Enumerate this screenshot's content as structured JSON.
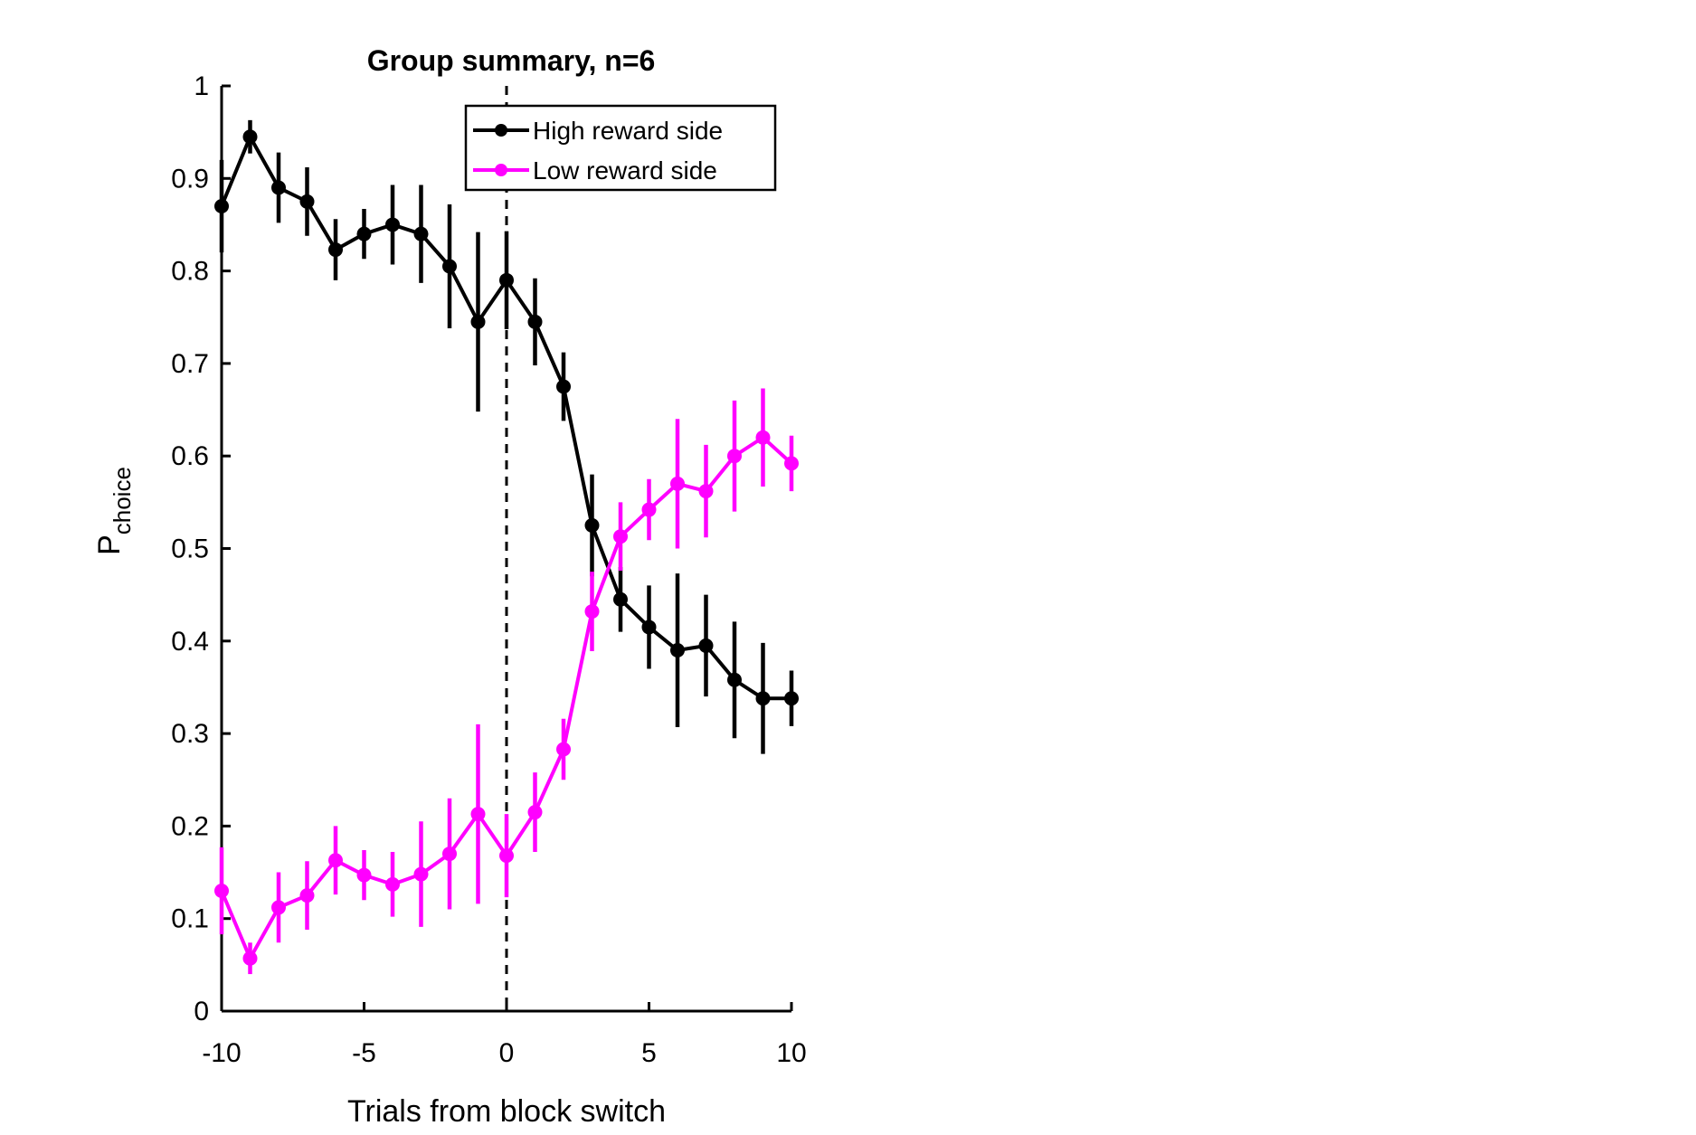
{
  "chart_data": {
    "type": "line",
    "title": "Group summary, n=6",
    "xlabel": "Trials from block switch",
    "ylabel": "P",
    "ylabel_subscript": "choice",
    "xlim": [
      -10,
      10
    ],
    "ylim": [
      0,
      1
    ],
    "xticks": [
      -10,
      -5,
      0,
      5,
      10
    ],
    "yticks": [
      0,
      0.1,
      0.2,
      0.3,
      0.4,
      0.5,
      0.6,
      0.7,
      0.8,
      0.9,
      1
    ],
    "grid": false,
    "legend_position": "top-right",
    "reference_line": {
      "x": 0,
      "style": "dashed",
      "color": "#000000"
    },
    "x": [
      -10,
      -9,
      -8,
      -7,
      -6,
      -5,
      -4,
      -3,
      -2,
      -1,
      0,
      1,
      2,
      3,
      4,
      5,
      6,
      7,
      8,
      9,
      10
    ],
    "series": [
      {
        "name": "High reward side",
        "color": "#000000",
        "values": [
          0.87,
          0.945,
          0.89,
          0.875,
          0.823,
          0.84,
          0.85,
          0.84,
          0.805,
          0.745,
          0.79,
          0.745,
          0.675,
          0.525,
          0.445,
          0.415,
          0.39,
          0.395,
          0.358,
          0.338,
          0.338
        ],
        "error": [
          0.05,
          0.018,
          0.038,
          0.037,
          0.033,
          0.027,
          0.043,
          0.053,
          0.067,
          0.097,
          0.053,
          0.047,
          0.037,
          0.055,
          0.035,
          0.045,
          0.083,
          0.055,
          0.063,
          0.06,
          0.03
        ]
      },
      {
        "name": "Low reward side",
        "color": "#ff00ff",
        "values": [
          0.13,
          0.057,
          0.112,
          0.125,
          0.163,
          0.147,
          0.137,
          0.148,
          0.17,
          0.213,
          0.168,
          0.215,
          0.283,
          0.432,
          0.513,
          0.542,
          0.57,
          0.562,
          0.6,
          0.62,
          0.592
        ],
        "error": [
          0.047,
          0.017,
          0.038,
          0.037,
          0.037,
          0.027,
          0.035,
          0.057,
          0.06,
          0.097,
          0.045,
          0.043,
          0.033,
          0.043,
          0.037,
          0.033,
          0.07,
          0.05,
          0.06,
          0.053,
          0.03
        ]
      }
    ]
  }
}
